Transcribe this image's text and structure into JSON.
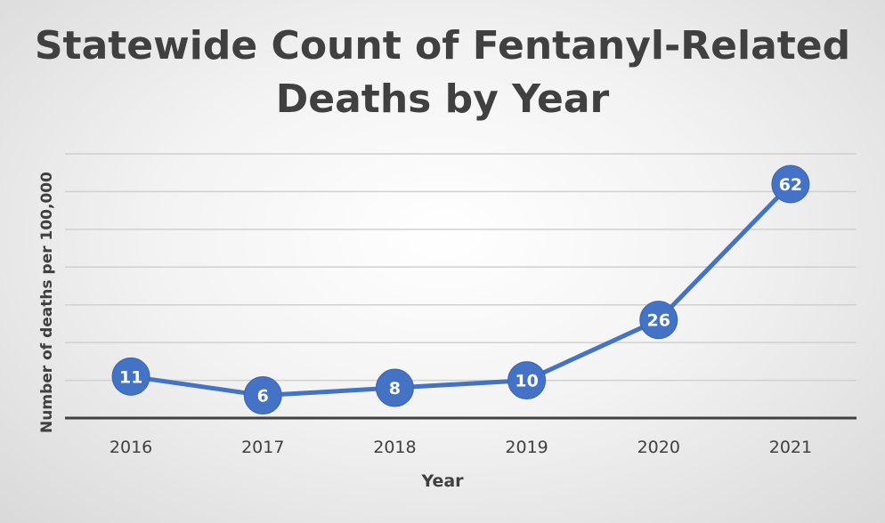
{
  "chart_data": {
    "type": "line",
    "title_lines": [
      "Statewide Count of Fentanyl-Related",
      "Deaths by Year"
    ],
    "xlabel": "Year",
    "ylabel": "Number of deaths per 100,000",
    "categories": [
      "2016",
      "2017",
      "2018",
      "2019",
      "2020",
      "2021"
    ],
    "series": [
      {
        "values": [
          11,
          6,
          8,
          10,
          26,
          62
        ]
      }
    ],
    "data_labels": [
      "11",
      "6",
      "8",
      "10",
      "26",
      "62"
    ],
    "ylim": [
      0,
      70
    ],
    "grid": true,
    "legend": "none",
    "colors": {
      "line": "#4472c4",
      "grid": "#d0d0d0",
      "axis": "#404040",
      "label_text": "#ffffff"
    }
  }
}
